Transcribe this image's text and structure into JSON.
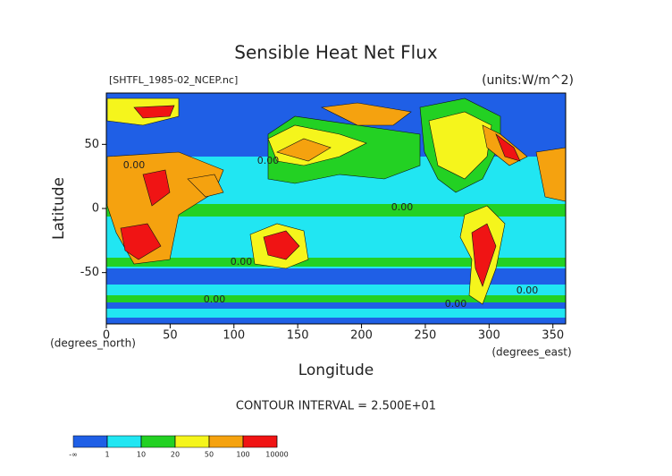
{
  "chart_data": {
    "type": "contour",
    "title": "Sensible Heat Net Flux",
    "subtitle": "[SHTFL_1985-02_NCEP.nc]",
    "units": "(units:W/m^2)",
    "x_label": "Longitude",
    "y_label": "Latitude",
    "x_unit_label": "(degrees_east)",
    "y_unit_label": "(degrees_north)",
    "xlim": [
      0,
      360
    ],
    "xticks": [
      0,
      50,
      100,
      150,
      200,
      250,
      300,
      350
    ],
    "ylim": [
      -90,
      90
    ],
    "yticks": [
      -50,
      0,
      50
    ],
    "contour_interval_text": "CONTOUR INTERVAL = 2.500E+01",
    "contour_label": "0.00",
    "colorbar": {
      "low_label": "-∞",
      "levels": [
        1,
        10,
        20,
        50,
        100,
        10000
      ],
      "colors": [
        "#1f5fe6",
        "#21e6f2",
        "#23d123",
        "#f5f51c",
        "#f5a20f",
        "#f01414"
      ]
    }
  }
}
